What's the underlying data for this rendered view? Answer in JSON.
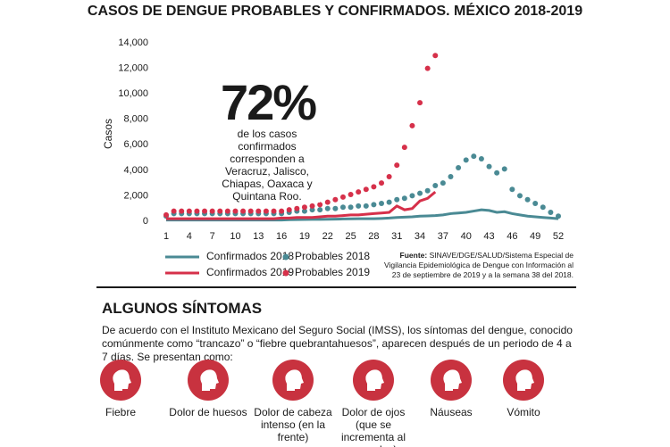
{
  "chart_data": {
    "type": "line",
    "title": "CASOS DE DENGUE PROBABLES Y CONFIRMADOS. MÉXICO 2018-2019",
    "y_label": "Casos",
    "x": [
      1,
      2,
      3,
      4,
      5,
      6,
      7,
      8,
      9,
      10,
      11,
      12,
      13,
      14,
      15,
      16,
      17,
      18,
      19,
      20,
      21,
      22,
      23,
      24,
      25,
      26,
      27,
      28,
      29,
      30,
      31,
      32,
      33,
      34,
      35,
      36,
      37,
      38,
      39,
      40,
      41,
      42,
      43,
      44,
      45,
      46,
      47,
      48,
      49,
      50,
      51,
      52
    ],
    "xlim": [
      1,
      52
    ],
    "xticks": [
      1,
      4,
      7,
      10,
      13,
      16,
      19,
      22,
      25,
      28,
      31,
      34,
      37,
      40,
      43,
      46,
      49,
      52
    ],
    "ylim": [
      0,
      14000
    ],
    "yticks": [
      0,
      {
        "value": 2000,
        "label": "2,000"
      },
      {
        "value": 4000,
        "label": "4,000"
      },
      {
        "value": 6000,
        "label": "6,000"
      },
      {
        "value": 8000,
        "label": "8,000"
      },
      {
        "value": 10000,
        "label": "10,000"
      },
      {
        "value": 12000,
        "label": "12,000"
      },
      {
        "value": 14000,
        "label": "14,000"
      }
    ],
    "series": [
      {
        "name": "Confirmados 2018",
        "type": "line",
        "color": "#4a8a94",
        "values": [
          100,
          100,
          100,
          100,
          100,
          100,
          100,
          100,
          100,
          100,
          100,
          100,
          100,
          100,
          100,
          100,
          120,
          130,
          140,
          150,
          150,
          160,
          170,
          180,
          190,
          200,
          200,
          200,
          220,
          250,
          300,
          320,
          350,
          400,
          420,
          450,
          500,
          600,
          650,
          700,
          800,
          900,
          850,
          700,
          750,
          600,
          500,
          400,
          350,
          300,
          250,
          200
        ]
      },
      {
        "name": "Probables 2018",
        "type": "scatter",
        "color": "#4a8a94",
        "values": [
          400,
          600,
          600,
          600,
          600,
          600,
          600,
          600,
          600,
          600,
          600,
          600,
          600,
          600,
          600,
          600,
          700,
          800,
          800,
          900,
          900,
          1000,
          1000,
          1100,
          1100,
          1200,
          1200,
          1300,
          1400,
          1500,
          1700,
          1800,
          2000,
          2200,
          2400,
          2800,
          3000,
          3500,
          4200,
          4800,
          5100,
          4900,
          4300,
          3800,
          4100,
          2500,
          2000,
          1700,
          1400,
          1100,
          700,
          400
        ]
      },
      {
        "name": "Confirmados 2019",
        "type": "line",
        "color": "#d6304a",
        "values": [
          200,
          200,
          200,
          200,
          200,
          200,
          200,
          200,
          200,
          200,
          200,
          200,
          200,
          200,
          200,
          250,
          250,
          300,
          300,
          300,
          350,
          400,
          400,
          450,
          500,
          500,
          550,
          600,
          650,
          700,
          1200,
          900,
          1000,
          1600,
          1800,
          2300,
          null,
          null,
          null,
          null,
          null,
          null,
          null,
          null,
          null,
          null,
          null,
          null,
          null,
          null,
          null,
          null
        ]
      },
      {
        "name": "Probables 2019",
        "type": "scatter",
        "color": "#d6304a",
        "values": [
          500,
          800,
          800,
          800,
          800,
          800,
          800,
          800,
          800,
          800,
          800,
          800,
          800,
          800,
          800,
          800,
          900,
          1000,
          1100,
          1200,
          1300,
          1500,
          1700,
          1900,
          2100,
          2300,
          2500,
          2700,
          3000,
          3500,
          4400,
          5800,
          7500,
          9300,
          12000,
          13000,
          null,
          null,
          null,
          null,
          null,
          null,
          null,
          null,
          null,
          null,
          null,
          null,
          null,
          null,
          null,
          null
        ]
      }
    ],
    "annotation_value": "72%",
    "annotation_text": "de los casos confirmados corresponden a Veracruz, Jalisco, Chiapas, Oaxaca y Quintana Roo.",
    "source_label": "Fuente:",
    "source": "SINAVE/DGE/SALUD/Sistema Especial de Vigilancia Epidemiológica de Dengue con Información al 23 de septiembre de 2019 y a la semana 38 del 2018."
  },
  "symptoms": {
    "heading": "ALGUNOS SÍNTOMAS",
    "intro": "De acuerdo con el Instituto Mexicano del Seguro Social (IMSS), los síntomas del dengue, conocido comúnmente como “trancazo” o “fiebre quebrantahuesos”, aparecen después de un periodo de 4 a 7 días. Se presentan como:",
    "items": [
      "Fiebre",
      "Dolor de huesos",
      "Dolor de cabeza intenso (en la frente)",
      "Dolor de ojos (que se incrementa al moverlos)",
      "Náuseas",
      "Vómito"
    ]
  }
}
